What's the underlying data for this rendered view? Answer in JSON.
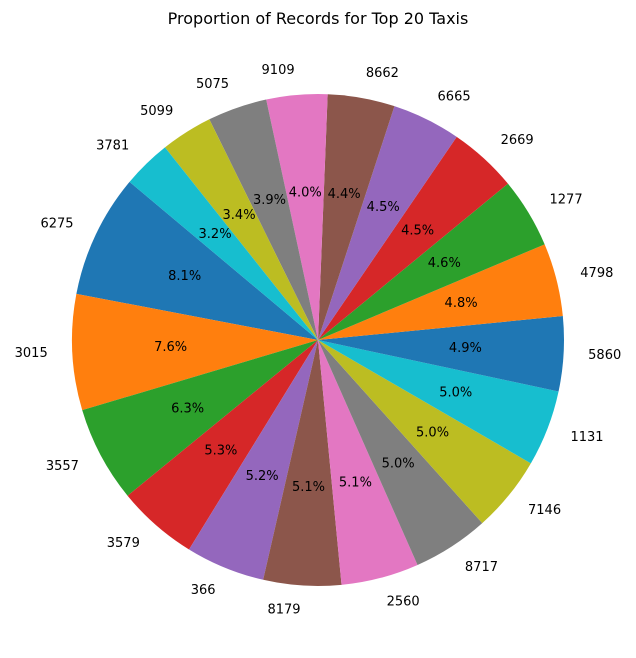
{
  "chart_data": {
    "type": "pie",
    "title": "Proportion of Records for Top 20 Taxis",
    "labels": [
      "6275",
      "3015",
      "3557",
      "3579",
      "366",
      "8179",
      "2560",
      "8717",
      "7146",
      "1131",
      "5860",
      "4798",
      "1277",
      "2669",
      "6665",
      "8662",
      "9109",
      "5075",
      "5099",
      "3781"
    ],
    "values": [
      8.1,
      7.6,
      6.3,
      5.3,
      5.2,
      5.1,
      5.1,
      5.0,
      5.0,
      5.0,
      4.9,
      4.8,
      4.6,
      4.5,
      4.5,
      4.4,
      4.0,
      3.9,
      3.4,
      3.2
    ],
    "percent_labels": [
      "8.1%",
      "7.6%",
      "6.3%",
      "5.3%",
      "5.2%",
      "5.1%",
      "5.1%",
      "5.0%",
      "5.0%",
      "5.0%",
      "4.9%",
      "4.8%",
      "4.6%",
      "4.5%",
      "4.5%",
      "4.4%",
      "4.0%",
      "3.9%",
      "3.4%",
      "3.2%"
    ],
    "colors": [
      "#1f77b4",
      "#ff7f0e",
      "#2ca02c",
      "#d62728",
      "#9467bd",
      "#8c564b",
      "#e377c2",
      "#7f7f7f",
      "#bcbd22",
      "#17becf",
      "#1f77b4",
      "#ff7f0e",
      "#2ca02c",
      "#d62728",
      "#9467bd",
      "#8c564b",
      "#e377c2",
      "#7f7f7f",
      "#bcbd22",
      "#17becf"
    ],
    "start_angle_deg": 140,
    "direction": "counterclockwise"
  }
}
